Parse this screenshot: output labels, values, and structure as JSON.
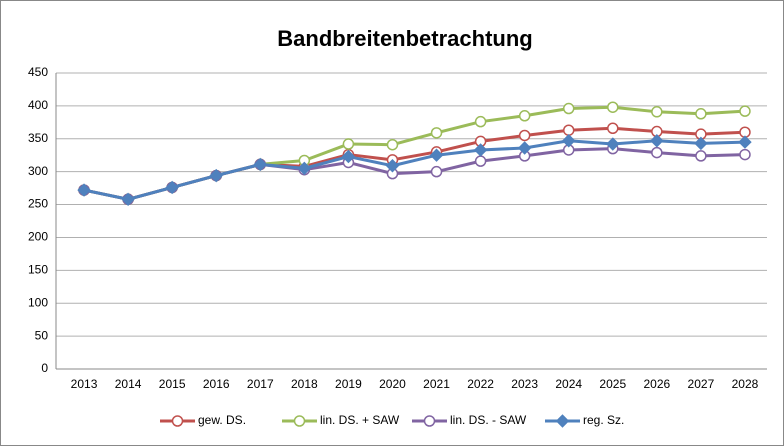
{
  "chart_data": {
    "type": "line",
    "title": "Bandbreitenbetrachtung",
    "categories": [
      "2013",
      "2014",
      "2015",
      "2016",
      "2017",
      "2018",
      "2019",
      "2020",
      "2021",
      "2022",
      "2023",
      "2024",
      "2025",
      "2026",
      "2027",
      "2028"
    ],
    "series": [
      {
        "name": "gew. DS.",
        "color": "#c0504d",
        "marker": "circle",
        "values": [
          272,
          258,
          276,
          294,
          311,
          308,
          326,
          318,
          330,
          346,
          355,
          363,
          366,
          361,
          357,
          360
        ]
      },
      {
        "name": "lin. DS. + SAW",
        "color": "#9bbb59",
        "marker": "circle",
        "values": [
          272,
          258,
          276,
          294,
          311,
          317,
          342,
          341,
          359,
          376,
          385,
          396,
          398,
          391,
          388,
          392
        ]
      },
      {
        "name": "lin. DS. - SAW",
        "color": "#8064a2",
        "marker": "circle",
        "values": [
          272,
          258,
          276,
          294,
          311,
          303,
          314,
          297,
          300,
          316,
          324,
          333,
          335,
          329,
          324,
          326
        ]
      },
      {
        "name": "reg. Sz.",
        "color": "#4f81bd",
        "marker": "diamond",
        "values": [
          272,
          258,
          276,
          294,
          311,
          305,
          323,
          309,
          325,
          333,
          336,
          347,
          342,
          347,
          343,
          345
        ]
      }
    ],
    "ylim": [
      0,
      450
    ],
    "yticks": [
      0,
      50,
      100,
      150,
      200,
      250,
      300,
      350,
      400,
      450
    ],
    "grid": true,
    "legend": "bottom"
  }
}
